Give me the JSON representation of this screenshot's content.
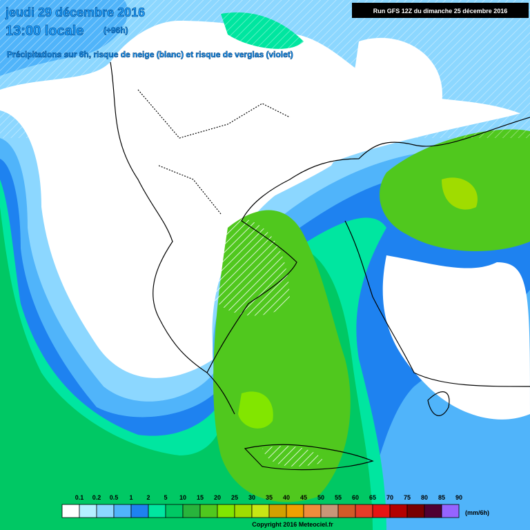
{
  "header": {
    "date": "jeudi 29 décembre 2016",
    "time": "13:00 locale",
    "lead": "(+96h)",
    "subtitle": "Précipitations sur 6h, risque de neige (blanc) et risque de verglas (violet)",
    "run": "Run GFS 12Z du dimanche 25 décembre 2016"
  },
  "legend": {
    "labels": [
      "0.1",
      "0.2",
      "0.5",
      "1",
      "2",
      "5",
      "10",
      "15",
      "20",
      "25",
      "30",
      "35",
      "40",
      "45",
      "50",
      "55",
      "60",
      "65",
      "70",
      "75",
      "80",
      "85",
      "90"
    ],
    "colors": [
      "#ffffff",
      "#b4f0ff",
      "#8cd7ff",
      "#50b4fa",
      "#1e82f0",
      "#00e6a0",
      "#00c864",
      "#28b43c",
      "#50c81e",
      "#82e600",
      "#a0dc00",
      "#c8e614",
      "#d2a000",
      "#f0a000",
      "#f08c3c",
      "#c89678",
      "#d25a28",
      "#e63c28",
      "#e61414",
      "#b40000",
      "#780000",
      "#500032",
      "#9664ff"
    ],
    "unit": "(mm/6h)"
  },
  "footer": "Copyright 2016 Meteociel.fr"
}
